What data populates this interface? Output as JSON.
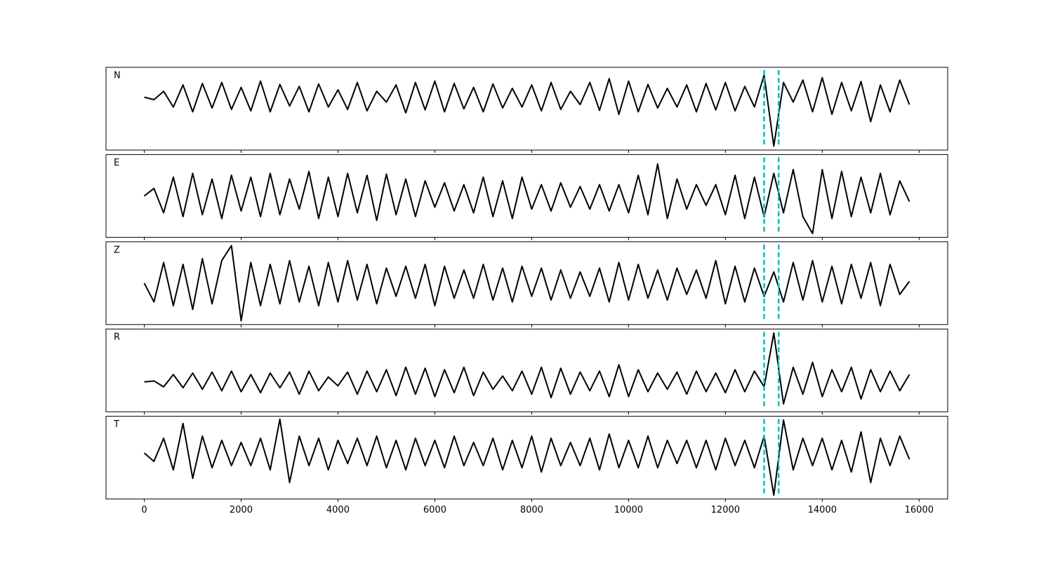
{
  "chart_data": {
    "type": "line",
    "x": [
      0,
      200,
      400,
      600,
      800,
      1000,
      1200,
      1400,
      1600,
      1800,
      2000,
      2200,
      2400,
      2600,
      2800,
      3000,
      3200,
      3400,
      3600,
      3800,
      4000,
      4200,
      4400,
      4600,
      4800,
      5000,
      5200,
      5400,
      5600,
      5800,
      6000,
      6200,
      6400,
      6600,
      6800,
      7000,
      7200,
      7400,
      7600,
      7800,
      8000,
      8200,
      8400,
      8600,
      8800,
      9000,
      9200,
      9400,
      9600,
      9800,
      10000,
      10200,
      10400,
      10600,
      10800,
      11000,
      11200,
      11400,
      11600,
      11800,
      12000,
      12200,
      12400,
      12600,
      12800,
      13000,
      13200,
      13400,
      13600,
      13800,
      14000,
      14200,
      14400,
      14600,
      14800,
      15000,
      15200,
      15400,
      15600,
      15800
    ],
    "xlim": [
      -790,
      16590
    ],
    "xticks": [
      0,
      2000,
      4000,
      6000,
      8000,
      10000,
      12000,
      14000,
      16000
    ],
    "markers": [
      12800,
      13100
    ],
    "marker_color": "#00bfbf",
    "panels": [
      {
        "title": "N",
        "ylim": [
          -1.08,
          0.61
        ],
        "series": [
          {
            "color": "#000000",
            "values": [
              0,
              -0.05,
              0.12,
              -0.2,
              0.25,
              -0.3,
              0.28,
              -0.22,
              0.3,
              -0.25,
              0.2,
              -0.28,
              0.33,
              -0.3,
              0.26,
              -0.18,
              0.22,
              -0.3,
              0.27,
              -0.2,
              0.15,
              -0.25,
              0.3,
              -0.28,
              0.12,
              -0.1,
              0.25,
              -0.32,
              0.3,
              -0.26,
              0.33,
              -0.3,
              0.28,
              -0.24,
              0.2,
              -0.3,
              0.27,
              -0.22,
              0.18,
              -0.2,
              0.25,
              -0.28,
              0.3,
              -0.25,
              0.12,
              -0.15,
              0.3,
              -0.27,
              0.38,
              -0.35,
              0.33,
              -0.3,
              0.26,
              -0.22,
              0.18,
              -0.2,
              0.25,
              -0.3,
              0.28,
              -0.26,
              0.3,
              -0.28,
              0.22,
              -0.2,
              0.45,
              -1.0,
              0.3,
              -0.1,
              0.35,
              -0.3,
              0.4,
              -0.35,
              0.3,
              -0.28,
              0.32,
              -0.5,
              0.25,
              -0.3,
              0.35,
              -0.15
            ]
          }
        ]
      },
      {
        "title": "E",
        "ylim": [
          -1.1,
          1.1
        ],
        "series": [
          {
            "color": "#000000",
            "values": [
              0,
              0.2,
              -0.45,
              0.5,
              -0.55,
              0.6,
              -0.5,
              0.45,
              -0.6,
              0.55,
              -0.4,
              0.5,
              -0.55,
              0.6,
              -0.5,
              0.45,
              -0.35,
              0.65,
              -0.6,
              0.5,
              -0.55,
              0.6,
              -0.45,
              0.55,
              -0.65,
              0.58,
              -0.5,
              0.45,
              -0.55,
              0.4,
              -0.3,
              0.35,
              -0.4,
              0.3,
              -0.45,
              0.5,
              -0.55,
              0.4,
              -0.6,
              0.5,
              -0.35,
              0.3,
              -0.4,
              0.35,
              -0.3,
              0.25,
              -0.35,
              0.3,
              -0.4,
              0.3,
              -0.45,
              0.55,
              -0.5,
              0.85,
              -0.6,
              0.45,
              -0.35,
              0.3,
              -0.25,
              0.3,
              -0.5,
              0.55,
              -0.6,
              0.5,
              -0.55,
              0.6,
              -0.45,
              0.7,
              -0.55,
              -1.0,
              0.7,
              -0.6,
              0.65,
              -0.55,
              0.5,
              -0.45,
              0.6,
              -0.5,
              0.4,
              -0.15
            ]
          }
        ]
      },
      {
        "title": "Z",
        "ylim": [
          -1.1,
          1.1
        ],
        "series": [
          {
            "color": "#000000",
            "values": [
              0,
              -0.5,
              0.55,
              -0.6,
              0.5,
              -0.7,
              0.65,
              -0.55,
              0.6,
              1.0,
              -1.0,
              0.55,
              -0.6,
              0.5,
              -0.55,
              0.6,
              -0.5,
              0.45,
              -0.6,
              0.55,
              -0.5,
              0.6,
              -0.45,
              0.5,
              -0.55,
              0.4,
              -0.35,
              0.45,
              -0.4,
              0.5,
              -0.6,
              0.45,
              -0.4,
              0.35,
              -0.4,
              0.5,
              -0.45,
              0.4,
              -0.5,
              0.45,
              -0.35,
              0.4,
              -0.45,
              0.35,
              -0.4,
              0.3,
              -0.35,
              0.4,
              -0.5,
              0.55,
              -0.45,
              0.5,
              -0.4,
              0.35,
              -0.45,
              0.4,
              -0.3,
              0.35,
              -0.4,
              0.6,
              -0.55,
              0.45,
              -0.5,
              0.4,
              -0.35,
              0.3,
              -0.5,
              0.55,
              -0.45,
              0.6,
              -0.5,
              0.45,
              -0.55,
              0.5,
              -0.4,
              0.55,
              -0.6,
              0.5,
              -0.3,
              0.05
            ]
          }
        ]
      },
      {
        "title": "R",
        "ylim": [
          -0.61,
          1.08
        ],
        "series": [
          {
            "color": "#000000",
            "values": [
              0,
              0.02,
              -0.1,
              0.15,
              -0.12,
              0.18,
              -0.15,
              0.2,
              -0.18,
              0.22,
              -0.2,
              0.15,
              -0.22,
              0.18,
              -0.12,
              0.2,
              -0.25,
              0.22,
              -0.18,
              0.1,
              -0.08,
              0.2,
              -0.25,
              0.22,
              -0.2,
              0.25,
              -0.28,
              0.3,
              -0.25,
              0.28,
              -0.3,
              0.25,
              -0.22,
              0.3,
              -0.28,
              0.2,
              -0.15,
              0.12,
              -0.18,
              0.22,
              -0.25,
              0.3,
              -0.32,
              0.28,
              -0.25,
              0.2,
              -0.18,
              0.22,
              -0.3,
              0.35,
              -0.3,
              0.25,
              -0.2,
              0.18,
              -0.15,
              0.2,
              -0.25,
              0.22,
              -0.2,
              0.18,
              -0.22,
              0.25,
              -0.2,
              0.22,
              -0.1,
              1.0,
              -0.45,
              0.3,
              -0.25,
              0.4,
              -0.3,
              0.25,
              -0.2,
              0.3,
              -0.35,
              0.25,
              -0.2,
              0.22,
              -0.18,
              0.15
            ]
          }
        ]
      },
      {
        "title": "T",
        "ylim": [
          -1.09,
          0.87
        ],
        "series": [
          {
            "color": "#000000",
            "values": [
              0,
              -0.2,
              0.35,
              -0.4,
              0.7,
              -0.6,
              0.4,
              -0.35,
              0.3,
              -0.3,
              0.25,
              -0.3,
              0.35,
              -0.4,
              0.8,
              -0.7,
              0.4,
              -0.3,
              0.35,
              -0.4,
              0.3,
              -0.25,
              0.35,
              -0.3,
              0.4,
              -0.35,
              0.3,
              -0.4,
              0.35,
              -0.3,
              0.3,
              -0.35,
              0.4,
              -0.3,
              0.25,
              -0.3,
              0.35,
              -0.4,
              0.3,
              -0.35,
              0.4,
              -0.45,
              0.35,
              -0.3,
              0.25,
              -0.3,
              0.35,
              -0.4,
              0.45,
              -0.35,
              0.3,
              -0.35,
              0.4,
              -0.35,
              0.3,
              -0.25,
              0.3,
              -0.35,
              0.3,
              -0.4,
              0.35,
              -0.3,
              0.3,
              -0.35,
              0.4,
              -1.0,
              0.78,
              -0.4,
              0.35,
              -0.3,
              0.35,
              -0.4,
              0.3,
              -0.45,
              0.5,
              -0.7,
              0.35,
              -0.3,
              0.4,
              -0.15
            ]
          }
        ]
      }
    ]
  }
}
